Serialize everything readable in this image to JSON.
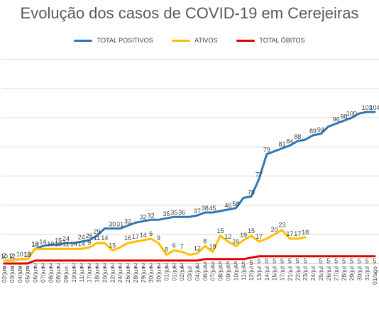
{
  "chart_data": {
    "type": "line",
    "title": "Evolução dos casos de COVID-19 em Cerejeiras",
    "xlabel": "",
    "ylabel": "",
    "ylim": [
      0,
      140
    ],
    "grid": true,
    "legend_position": "top",
    "x": [
      "02/jun",
      "03/jun",
      "04/jun",
      "05/jun",
      "06/jun",
      "07/jun",
      "08/jun",
      "08/jun",
      "09/jun",
      "10/jun",
      "11/jun",
      "17/jun",
      "18/jun",
      "20/jun",
      "22/jun",
      "24/jun",
      "26/jun",
      "28/jun",
      "29/jun",
      "30/jun",
      "30/jun",
      "01/jul",
      "01/jul",
      "02/jul",
      "03/jul",
      "04/jul",
      "06/jul",
      "07/jul",
      "08/jul",
      "09/jul",
      "10/jul",
      "11/jul",
      "12/jul",
      "13/jul",
      "14/jul",
      "15/jul",
      "17/jul",
      "21/jul",
      "22/jul",
      "23/jul",
      "24/jul",
      "25/jul",
      "26/jul",
      "27/jul",
      "28/jul",
      "29/jul",
      "30/jul",
      "31/jul",
      "01/ago"
    ],
    "series": [
      {
        "name": "TOTAL POSITIVOS",
        "color": "#2E75B6",
        "values": [
          2,
          2,
          3,
          3,
          10,
          12,
          13,
          13,
          14,
          14,
          15,
          16,
          19,
          24,
          24,
          24,
          26,
          28,
          29,
          30,
          30,
          31,
          32,
          32,
          32,
          33,
          35,
          35,
          36,
          37,
          38,
          45,
          46,
          58,
          75,
          77,
          79,
          81,
          84,
          85,
          88,
          89,
          94,
          96,
          98,
          100,
          103,
          104,
          104
        ]
      },
      {
        "name": "ATIVOS",
        "color": "#FFC000",
        "values": [
          2,
          2,
          3,
          3,
          10,
          10,
          10,
          10,
          10,
          10,
          10,
          11,
          14,
          14,
          9,
          11,
          14,
          15,
          16,
          17,
          14,
          6,
          9,
          8,
          6,
          7,
          12,
          8,
          19,
          15,
          12,
          16,
          19,
          15,
          17,
          20,
          23,
          17,
          17,
          18,
          null,
          null,
          null,
          null,
          null,
          null,
          null,
          null,
          null
        ]
      },
      {
        "name": "TOTAL ÓBITOS",
        "color": "#E00000",
        "values": [
          0,
          0,
          0,
          0,
          2,
          2,
          2,
          2,
          2,
          2,
          2,
          2,
          2,
          2,
          2,
          2,
          2,
          2,
          2,
          2,
          2,
          2,
          2,
          2,
          2,
          2,
          3,
          3,
          3,
          3,
          3,
          3,
          4,
          5,
          5,
          5,
          5,
          5,
          5,
          5,
          5,
          5,
          5,
          5,
          5,
          5,
          5,
          5,
          5
        ]
      }
    ],
    "ativos_labels": [
      "2",
      "2",
      "10",
      "10",
      "10",
      "10",
      "10",
      "11",
      "14",
      "14",
      "9",
      "11",
      "14",
      "15",
      "16",
      "17",
      "14",
      "6",
      "9",
      "8",
      "6",
      "7",
      "12",
      "8",
      "19",
      "15",
      "12",
      "16",
      "19",
      "15",
      "17",
      "20",
      "23",
      "17",
      "17",
      "18"
    ],
    "positivos_labels": [
      "10",
      "12",
      "13",
      "14",
      "14",
      "15",
      "24",
      "24",
      "26",
      "29",
      "30",
      "31",
      "32",
      "32",
      "32",
      "35",
      "35",
      "36",
      "37",
      "38",
      "45",
      "46",
      "58",
      "75",
      "77",
      "79",
      "81",
      "84",
      "88",
      "89",
      "94",
      "96",
      "98",
      "100",
      "103",
      "104"
    ],
    "obitos_labels": [
      "2",
      "2",
      "2",
      "2",
      "2",
      "2",
      "2",
      "2",
      "2",
      "2",
      "2",
      "2",
      "2",
      "2",
      "2",
      "2",
      "2",
      "2",
      "2",
      "2",
      "3",
      "3",
      "3",
      "3",
      "3",
      "3",
      "5",
      "5",
      "5",
      "5",
      "5",
      "5",
      "5",
      "5",
      "5",
      "5",
      "5",
      "5",
      "5",
      "5",
      "5",
      "5",
      "5",
      "5",
      "5",
      "5"
    ]
  }
}
